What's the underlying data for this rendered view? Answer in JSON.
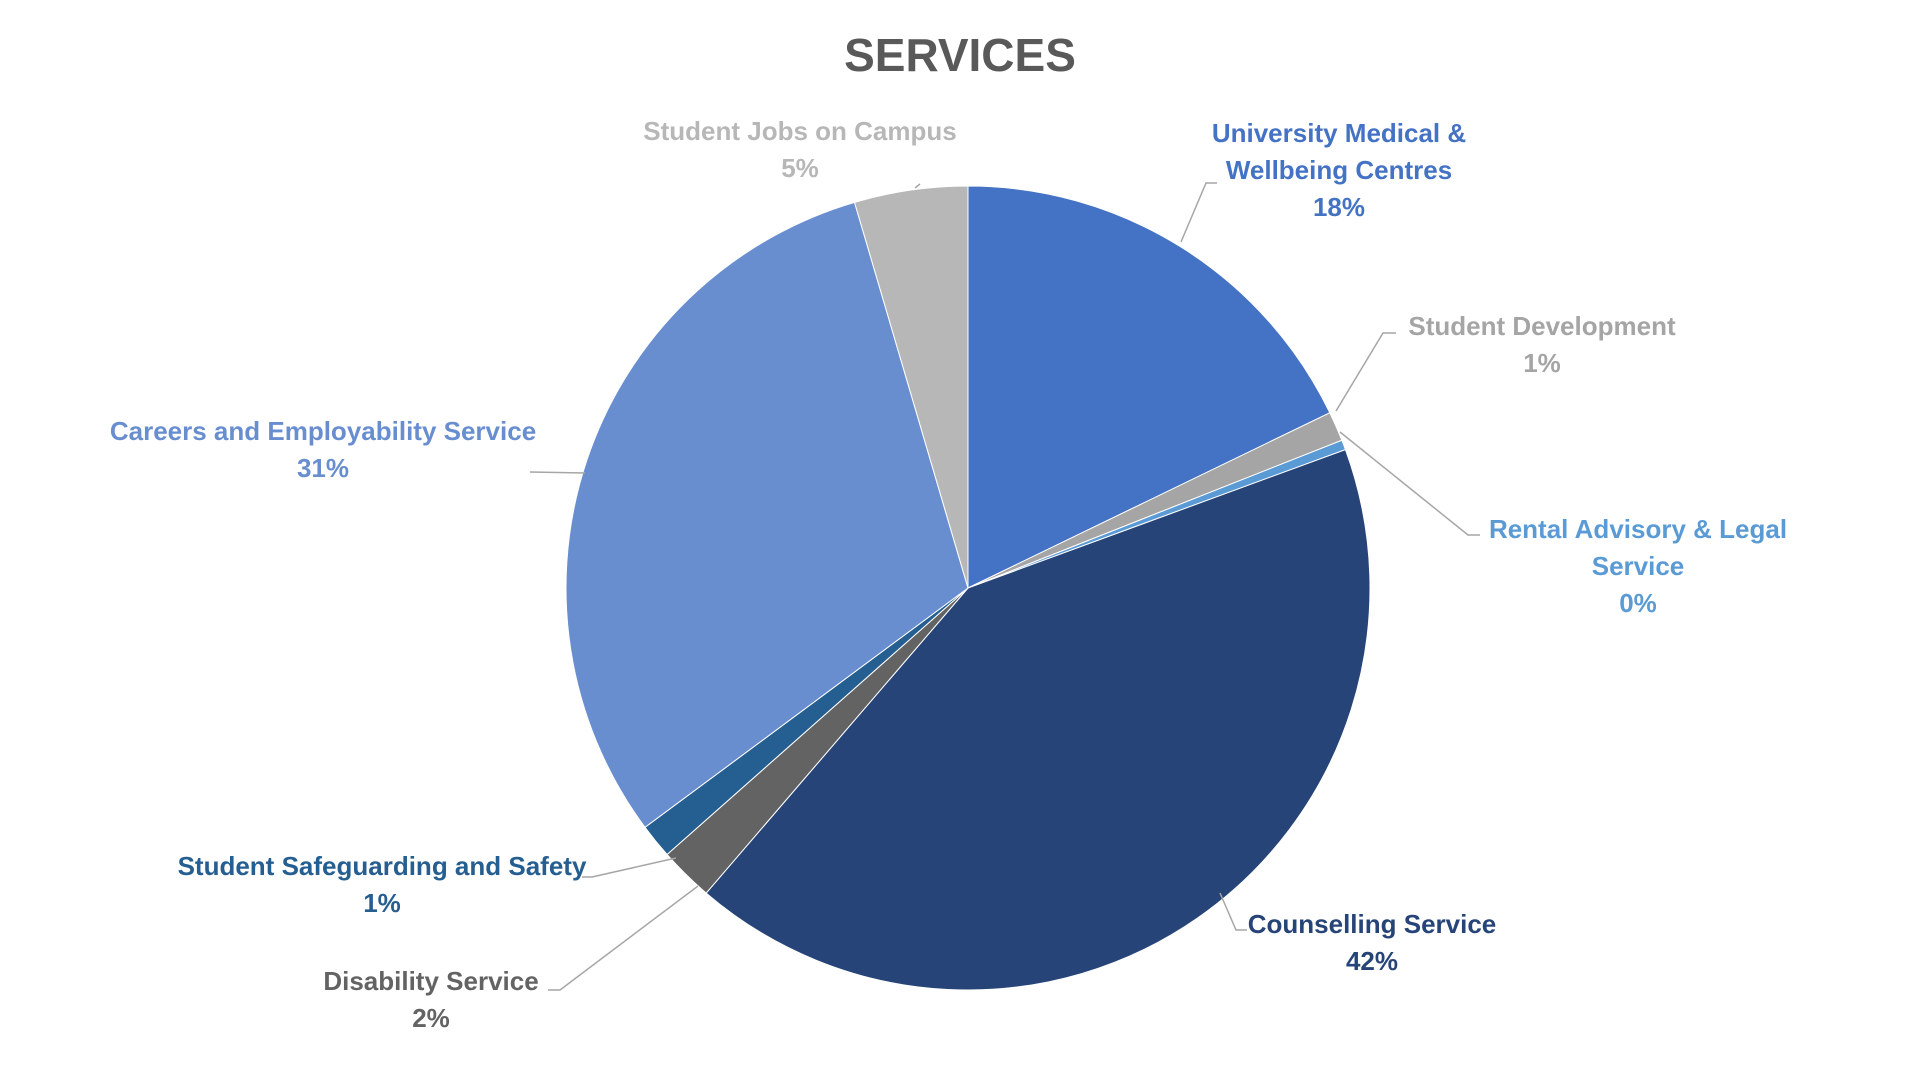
{
  "chart_data": {
    "type": "pie",
    "title": "SERVICES",
    "start_angle_deg": 0,
    "direction": "clockwise",
    "slices": [
      {
        "label_lines": [
          "University Medical &",
          "Wellbeing Centres"
        ],
        "pct_text": "18%",
        "value": 18.0,
        "color": "#4472C4",
        "label_color": "#4472C4"
      },
      {
        "label_lines": [
          "Student Development"
        ],
        "pct_text": "1%",
        "value": 1.2,
        "color": "#A5A5A5",
        "label_color": "#A5A5A5"
      },
      {
        "label_lines": [
          "Rental Advisory & Legal",
          "Service"
        ],
        "pct_text": "0%",
        "value": 0.4,
        "color": "#5B9BD5",
        "label_color": "#5B9BD5"
      },
      {
        "label_lines": [
          "Counselling Service"
        ],
        "pct_text": "42%",
        "value": 42.3,
        "color": "#264478",
        "label_color": "#264478"
      },
      {
        "label_lines": [
          "Disability Service"
        ],
        "pct_text": "2%",
        "value": 2.2,
        "color": "#636363",
        "label_color": "#636363"
      },
      {
        "label_lines": [
          "Student Safeguarding and Safety"
        ],
        "pct_text": "1%",
        "value": 1.4,
        "color": "#255E91",
        "label_color": "#255E91"
      },
      {
        "label_lines": [
          "Careers and Employability Service"
        ],
        "pct_text": "31%",
        "value": 30.9,
        "color": "#698ED0",
        "label_color": "#698ED0"
      },
      {
        "label_lines": [
          "Student Jobs on Campus"
        ],
        "pct_text": "5%",
        "value": 4.6,
        "color": "#B7B7B7",
        "label_color": "#B7B7B7"
      }
    ]
  }
}
